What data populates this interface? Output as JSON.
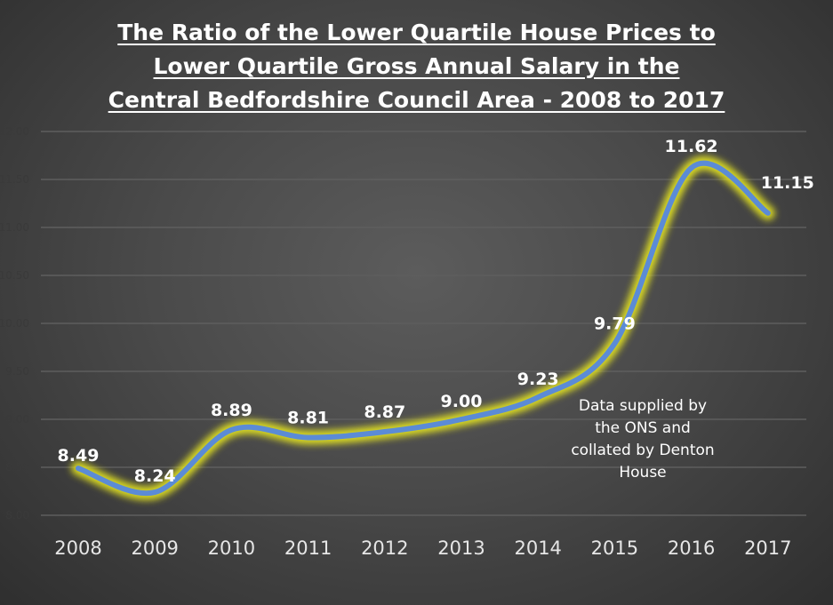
{
  "chart_data": {
    "type": "line",
    "title_lines": [
      "The Ratio of the Lower Quartile House Prices to",
      "Lower Quartile Gross Annual Salary in the",
      "Central Bedfordshire Council Area - 2008 to 2017"
    ],
    "categories": [
      "2008",
      "2009",
      "2010",
      "2011",
      "2012",
      "2013",
      "2014",
      "2015",
      "2016",
      "2017"
    ],
    "values": [
      8.49,
      8.24,
      8.89,
      8.81,
      8.87,
      9.0,
      9.23,
      9.79,
      11.62,
      11.15
    ],
    "data_labels": [
      "8.49",
      "8.24",
      "8.89",
      "8.81",
      "8.87",
      "9.00",
      "9.23",
      "9.79",
      "11.62",
      "11.15"
    ],
    "yticks": [
      "8.00",
      "8.50",
      "9.00",
      "9.50",
      "10.00",
      "10.50",
      "11.00",
      "11.50",
      "12.00"
    ],
    "ylim": [
      8,
      12
    ],
    "grid": true,
    "smoothed": true,
    "annotation": [
      "Data supplied by",
      "the ONS and",
      "collated by Denton",
      "House"
    ],
    "colors": {
      "line": "#5b8bd6",
      "glow": "#e0e020",
      "label": "#ffffff",
      "ytick": "#3a3a3a",
      "grid": "#5e5e5e"
    }
  }
}
